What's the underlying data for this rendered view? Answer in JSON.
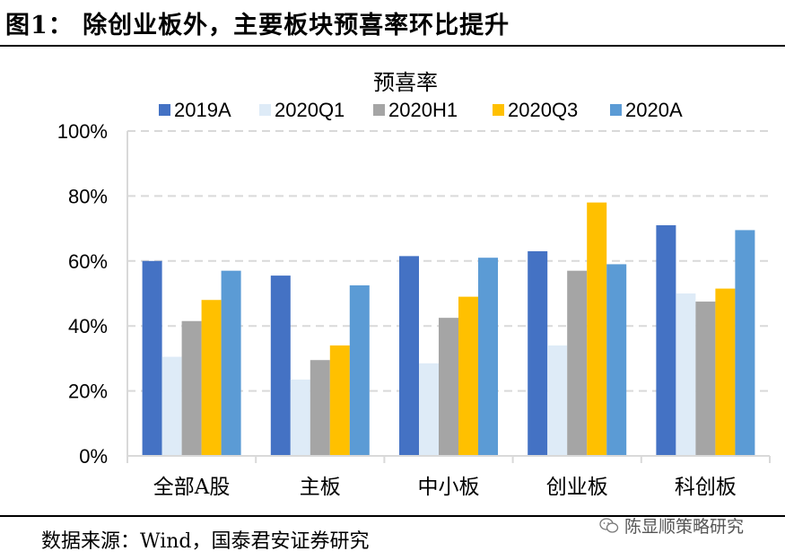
{
  "figure": {
    "title": "图1：  除创业板外，主要板块预喜率环比提升",
    "source": "数据来源：Wind，国泰君安证券研究",
    "watermark": "陈显顺策略研究"
  },
  "chart_data": {
    "type": "bar",
    "title": "预喜率",
    "categories": [
      "全部A股",
      "主板",
      "中小板",
      "创业板",
      "科创板"
    ],
    "series": [
      {
        "name": "2019A",
        "color": "#4472C4",
        "values": [
          60,
          55.5,
          61.5,
          63,
          71
        ]
      },
      {
        "name": "2020Q1",
        "color": "#DEEBF7",
        "values": [
          30.5,
          23.5,
          28.5,
          34,
          50
        ]
      },
      {
        "name": "2020H1",
        "color": "#A5A5A5",
        "values": [
          41.5,
          29.5,
          42.5,
          57,
          47.5
        ]
      },
      {
        "name": "2020Q3",
        "color": "#FFC000",
        "values": [
          48,
          34,
          49,
          78,
          51.5
        ]
      },
      {
        "name": "2020A",
        "color": "#5B9BD5",
        "values": [
          57,
          52.5,
          61,
          59,
          69.5
        ]
      }
    ],
    "ylim": [
      0,
      100
    ],
    "yticks": [
      "0%",
      "20%",
      "40%",
      "60%",
      "80%",
      "100%"
    ],
    "grid": true,
    "legend": "top"
  }
}
